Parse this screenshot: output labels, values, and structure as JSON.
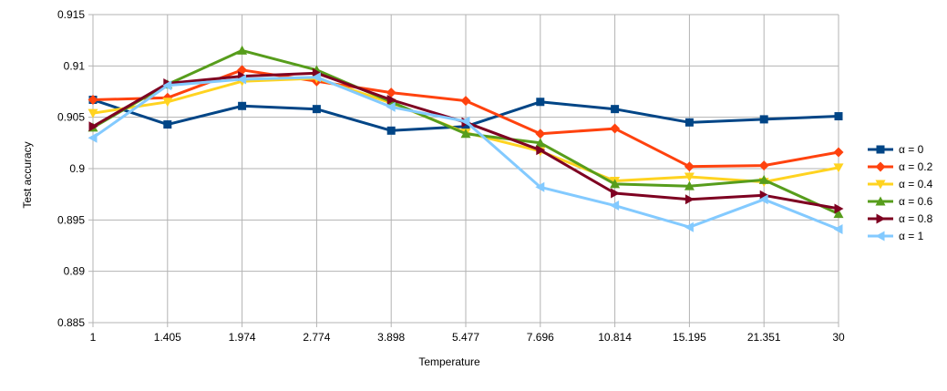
{
  "chart_data": {
    "type": "line",
    "xlabel": "Temperature",
    "ylabel": "Test accuracy",
    "categories": [
      "1",
      "1.405",
      "1.974",
      "2.774",
      "3.898",
      "5.477",
      "7.696",
      "10.814",
      "15.195",
      "21.351",
      "30"
    ],
    "ylim": [
      0.885,
      0.915
    ],
    "yticks": [
      "0.885",
      "0.89",
      "0.895",
      "0.9",
      "0.905",
      "0.91",
      "0.915"
    ],
    "grid": true,
    "legend_position": "right",
    "series": [
      {
        "name": "α = 0",
        "color": "#004586",
        "marker": "square",
        "values": [
          0.9067,
          0.9043,
          0.9061,
          0.9058,
          0.9037,
          0.9041,
          0.9065,
          0.9058,
          0.9045,
          0.9048,
          0.9051
        ]
      },
      {
        "name": "α = 0.2",
        "color": "#ff420e",
        "marker": "diamond",
        "values": [
          0.9067,
          0.9069,
          0.9096,
          0.9085,
          0.9074,
          0.9066,
          0.9034,
          0.9039,
          0.9002,
          0.9003,
          0.9016
        ]
      },
      {
        "name": "α = 0.4",
        "color": "#ffd320",
        "marker": "triangle-down",
        "values": [
          0.9054,
          0.9065,
          0.9085,
          0.9088,
          0.9064,
          0.9035,
          0.9017,
          0.8988,
          0.8992,
          0.8987,
          0.9001
        ]
      },
      {
        "name": "α = 0.6",
        "color": "#579d1c",
        "marker": "triangle-up",
        "values": [
          0.904,
          0.9082,
          0.9115,
          0.9096,
          0.9065,
          0.9034,
          0.9025,
          0.8985,
          0.8983,
          0.8989,
          0.8956
        ]
      },
      {
        "name": "α = 0.8",
        "color": "#7e0021",
        "marker": "triangle-right",
        "values": [
          0.9041,
          0.9083,
          0.909,
          0.9093,
          0.9067,
          0.9045,
          0.9018,
          0.8976,
          0.897,
          0.8974,
          0.8961
        ]
      },
      {
        "name": "α = 1",
        "color": "#83caff",
        "marker": "triangle-left",
        "values": [
          0.903,
          0.9081,
          0.9087,
          0.9089,
          0.906,
          0.9046,
          0.8982,
          0.8964,
          0.8943,
          0.897,
          0.8941
        ]
      }
    ]
  }
}
